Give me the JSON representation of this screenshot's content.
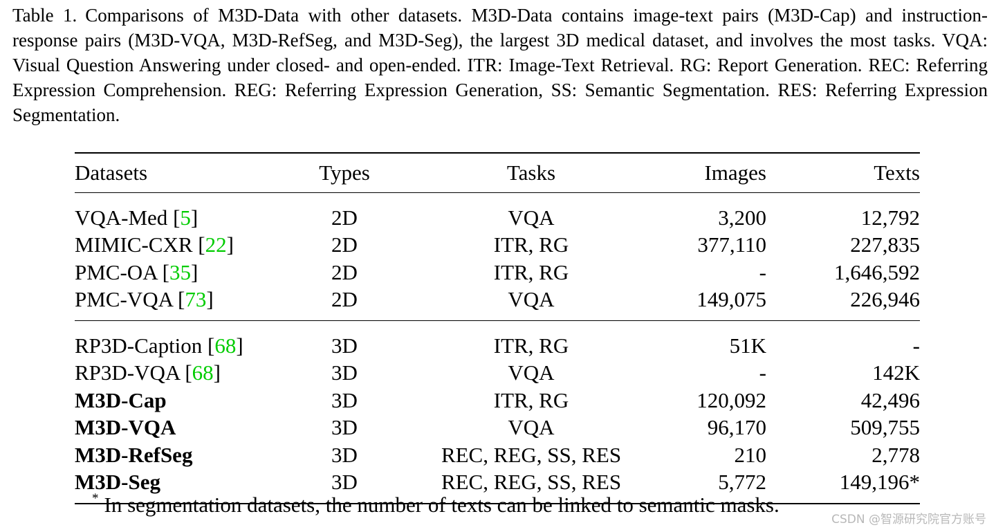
{
  "caption": {
    "label": "Table 1.",
    "text": "Comparisons of M3D-Data with other datasets. M3D-Data contains image-text pairs (M3D-Cap) and instruction-response pairs (M3D-VQA, M3D-RefSeg, and M3D-Seg), the largest 3D medical dataset, and involves the most tasks. VQA: Visual Question Answering under closed- and open-ended. ITR: Image-Text Retrieval. RG: Report Generation. REC: Referring Expression Comprehension. REG: Referring Expression Generation, SS: Semantic Segmentation. RES: Referring Expression Segmentation."
  },
  "table": {
    "headers": [
      "Datasets",
      "Types",
      "Tasks",
      "Images",
      "Texts"
    ],
    "rows": [
      {
        "name": "VQA-Med",
        "cite": "5",
        "type": "2D",
        "tasks": "VQA",
        "images": "3,200",
        "texts": "12,792"
      },
      {
        "name": "MIMIC-CXR",
        "cite": "22",
        "type": "2D",
        "tasks": "ITR, RG",
        "images": "377,110",
        "texts": "227,835"
      },
      {
        "name": "PMC-OA",
        "cite": "35",
        "type": "2D",
        "tasks": "ITR, RG",
        "images": "-",
        "texts": "1,646,592"
      },
      {
        "name": "PMC-VQA",
        "cite": "73",
        "type": "2D",
        "tasks": "VQA",
        "images": "149,075",
        "texts": "226,946"
      },
      {
        "name": "RP3D-Caption",
        "cite": "68",
        "type": "3D",
        "tasks": "ITR, RG",
        "images": "51K",
        "texts": "-"
      },
      {
        "name": "RP3D-VQA",
        "cite": "68",
        "type": "3D",
        "tasks": "VQA",
        "images": "-",
        "texts": "142K"
      },
      {
        "name": "M3D-Cap",
        "cite": "",
        "type": "3D",
        "tasks": "ITR, RG",
        "images": "120,092",
        "texts": "42,496"
      },
      {
        "name": "M3D-VQA",
        "cite": "",
        "type": "3D",
        "tasks": "VQA",
        "images": "96,170",
        "texts": "509,755"
      },
      {
        "name": "M3D-RefSeg",
        "cite": "",
        "type": "3D",
        "tasks": "REC, REG, SS, RES",
        "images": "210",
        "texts": "2,778"
      },
      {
        "name": "M3D-Seg",
        "cite": "",
        "type": "3D",
        "tasks": "REC, REG, SS, RES",
        "images": "5,772",
        "texts": "149,196*"
      }
    ]
  },
  "footnote": {
    "marker": "*",
    "text": "In segmentation datasets, the number of texts can be linked to semantic masks."
  },
  "watermark": "CSDN @智源研究院官方账号",
  "colors": {
    "citation": "#00cc00",
    "text": "#000000",
    "watermark": "#b8b8b8"
  }
}
